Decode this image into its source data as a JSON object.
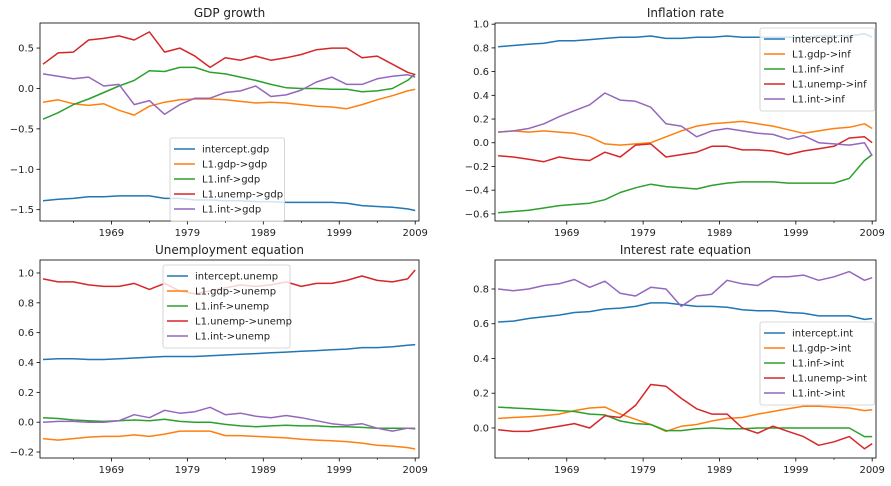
{
  "chart_data": [
    {
      "type": "line",
      "title": "GDP growth",
      "xlim": [
        1959.6,
        2009.5
      ],
      "ylim": [
        -1.64,
        0.81
      ],
      "xticks": [
        1969,
        1979,
        1989,
        1999,
        2009
      ],
      "yticks": [
        0.5,
        0.0,
        -0.5,
        -1.0,
        -1.5
      ],
      "ytick_labels": [
        "0.5",
        "0.0",
        "−0.5",
        "−1.0",
        "−1.5"
      ],
      "grid": false,
      "legend": "lower-center",
      "x": [
        1960,
        1962,
        1964,
        1966,
        1968,
        1970,
        1972,
        1974,
        1976,
        1978,
        1980,
        1982,
        1984,
        1986,
        1988,
        1990,
        1992,
        1994,
        1996,
        1998,
        2000,
        2002,
        2004,
        2006,
        2008,
        2009
      ],
      "series": [
        {
          "name": "intercept.gdp",
          "color": "#1f77b4",
          "values": [
            -1.39,
            -1.37,
            -1.36,
            -1.34,
            -1.34,
            -1.33,
            -1.33,
            -1.33,
            -1.36,
            -1.36,
            -1.38,
            -1.38,
            -1.39,
            -1.39,
            -1.4,
            -1.4,
            -1.41,
            -1.41,
            -1.41,
            -1.41,
            -1.42,
            -1.45,
            -1.46,
            -1.47,
            -1.49,
            -1.51
          ]
        },
        {
          "name": "L1.gdp->gdp",
          "color": "#ff7f0e",
          "values": [
            -0.17,
            -0.14,
            -0.19,
            -0.21,
            -0.19,
            -0.27,
            -0.33,
            -0.22,
            -0.17,
            -0.14,
            -0.13,
            -0.13,
            -0.14,
            -0.16,
            -0.18,
            -0.17,
            -0.18,
            -0.2,
            -0.22,
            -0.23,
            -0.25,
            -0.2,
            -0.14,
            -0.09,
            -0.03,
            -0.01
          ]
        },
        {
          "name": "L1.inf->gdp",
          "color": "#2ca02c",
          "values": [
            -0.38,
            -0.3,
            -0.2,
            -0.13,
            -0.05,
            0.03,
            0.1,
            0.22,
            0.21,
            0.26,
            0.26,
            0.2,
            0.18,
            0.14,
            0.1,
            0.05,
            0.01,
            0.0,
            0.0,
            -0.01,
            -0.01,
            -0.04,
            -0.03,
            0.0,
            0.1,
            0.18
          ]
        },
        {
          "name": "L1.unemp->gdp",
          "color": "#d62728",
          "values": [
            0.3,
            0.44,
            0.45,
            0.6,
            0.62,
            0.65,
            0.6,
            0.7,
            0.45,
            0.5,
            0.4,
            0.26,
            0.38,
            0.35,
            0.4,
            0.35,
            0.38,
            0.42,
            0.48,
            0.5,
            0.5,
            0.38,
            0.4,
            0.3,
            0.2,
            0.17
          ]
        },
        {
          "name": "L1.int->gdp",
          "color": "#9467bd",
          "values": [
            0.18,
            0.15,
            0.12,
            0.14,
            0.03,
            0.05,
            -0.2,
            -0.15,
            -0.32,
            -0.2,
            -0.12,
            -0.12,
            -0.05,
            -0.03,
            0.03,
            -0.1,
            -0.08,
            -0.02,
            0.08,
            0.14,
            0.05,
            0.05,
            0.12,
            0.15,
            0.17,
            0.14
          ]
        }
      ]
    },
    {
      "type": "line",
      "title": "Inflation rate",
      "xlim": [
        1959.6,
        2009.5
      ],
      "ylim": [
        -0.66,
        1.01
      ],
      "xticks": [
        1969,
        1979,
        1989,
        1999,
        2009
      ],
      "yticks": [
        1.0,
        0.8,
        0.6,
        0.4,
        0.2,
        0.0,
        -0.2,
        -0.4,
        -0.6
      ],
      "ytick_labels": [
        "1.0",
        "0.8",
        "0.6",
        "0.4",
        "0.2",
        "0.0",
        "−0.2",
        "−0.4",
        "−0.6"
      ],
      "grid": false,
      "legend": "upper-right",
      "x": [
        1960,
        1962,
        1964,
        1966,
        1968,
        1970,
        1972,
        1974,
        1976,
        1978,
        1980,
        1982,
        1984,
        1986,
        1988,
        1990,
        1992,
        1994,
        1996,
        1998,
        2000,
        2002,
        2004,
        2006,
        2008,
        2009
      ],
      "series": [
        {
          "name": "intercept.inf",
          "color": "#1f77b4",
          "values": [
            0.81,
            0.82,
            0.83,
            0.84,
            0.86,
            0.86,
            0.87,
            0.88,
            0.89,
            0.89,
            0.9,
            0.88,
            0.88,
            0.89,
            0.89,
            0.9,
            0.89,
            0.89,
            0.89,
            0.89,
            0.89,
            0.9,
            0.9,
            0.9,
            0.92,
            0.89
          ]
        },
        {
          "name": "L1.gdp->inf",
          "color": "#ff7f0e",
          "values": [
            0.09,
            0.1,
            0.09,
            0.1,
            0.09,
            0.08,
            0.05,
            -0.01,
            -0.02,
            -0.01,
            0.0,
            0.05,
            0.1,
            0.14,
            0.16,
            0.17,
            0.18,
            0.16,
            0.14,
            0.11,
            0.08,
            0.1,
            0.12,
            0.13,
            0.16,
            0.12
          ]
        },
        {
          "name": "L1.inf->inf",
          "color": "#2ca02c",
          "values": [
            -0.59,
            -0.58,
            -0.57,
            -0.55,
            -0.53,
            -0.52,
            -0.51,
            -0.48,
            -0.42,
            -0.38,
            -0.35,
            -0.37,
            -0.38,
            -0.39,
            -0.36,
            -0.34,
            -0.33,
            -0.33,
            -0.33,
            -0.34,
            -0.34,
            -0.34,
            -0.34,
            -0.3,
            -0.15,
            -0.1
          ]
        },
        {
          "name": "L1.unemp->inf",
          "color": "#d62728",
          "values": [
            -0.11,
            -0.12,
            -0.14,
            -0.16,
            -0.12,
            -0.14,
            -0.15,
            -0.08,
            -0.12,
            -0.02,
            -0.01,
            -0.12,
            -0.1,
            -0.08,
            -0.03,
            -0.03,
            -0.06,
            -0.06,
            -0.07,
            -0.1,
            -0.07,
            -0.05,
            -0.03,
            0.04,
            0.05,
            0.0
          ]
        },
        {
          "name": "L1.int->inf",
          "color": "#9467bd",
          "values": [
            0.09,
            0.1,
            0.12,
            0.16,
            0.22,
            0.27,
            0.32,
            0.42,
            0.36,
            0.35,
            0.3,
            0.16,
            0.14,
            0.05,
            0.1,
            0.12,
            0.1,
            0.08,
            0.07,
            0.03,
            0.06,
            0.0,
            -0.01,
            -0.02,
            0.0,
            -0.11
          ]
        }
      ]
    },
    {
      "type": "line",
      "title": "Unemployment equation",
      "xlim": [
        1959.6,
        2009.5
      ],
      "ylim": [
        -0.24,
        1.087
      ],
      "xticks": [
        1969,
        1979,
        1989,
        1999,
        2009
      ],
      "yticks": [
        1.0,
        0.8,
        0.6,
        0.4,
        0.2,
        0.0,
        -0.2
      ],
      "ytick_labels": [
        "1.0",
        "0.8",
        "0.6",
        "0.4",
        "0.2",
        "0.0",
        "−0.2"
      ],
      "grid": false,
      "legend": "upper-center",
      "x": [
        1960,
        1962,
        1964,
        1966,
        1968,
        1970,
        1972,
        1974,
        1976,
        1978,
        1980,
        1982,
        1984,
        1986,
        1988,
        1990,
        1992,
        1994,
        1996,
        1998,
        2000,
        2002,
        2004,
        2006,
        2008,
        2009
      ],
      "series": [
        {
          "name": "intercept.unemp",
          "color": "#1f77b4",
          "values": [
            0.42,
            0.425,
            0.425,
            0.42,
            0.42,
            0.425,
            0.43,
            0.435,
            0.44,
            0.44,
            0.44,
            0.445,
            0.45,
            0.455,
            0.46,
            0.465,
            0.47,
            0.475,
            0.48,
            0.485,
            0.49,
            0.5,
            0.5,
            0.505,
            0.515,
            0.52
          ]
        },
        {
          "name": "L1.gdp->unemp",
          "color": "#ff7f0e",
          "values": [
            -0.11,
            -0.12,
            -0.11,
            -0.1,
            -0.095,
            -0.095,
            -0.085,
            -0.095,
            -0.08,
            -0.06,
            -0.06,
            -0.06,
            -0.09,
            -0.09,
            -0.095,
            -0.1,
            -0.105,
            -0.115,
            -0.12,
            -0.125,
            -0.13,
            -0.14,
            -0.155,
            -0.16,
            -0.17,
            -0.18
          ]
        },
        {
          "name": "L1.inf->unemp",
          "color": "#2ca02c",
          "values": [
            0.03,
            0.025,
            0.015,
            0.01,
            0.005,
            0.01,
            0.015,
            0.01,
            0.02,
            0.005,
            0.0,
            0.0,
            -0.015,
            -0.025,
            -0.03,
            -0.025,
            -0.02,
            -0.025,
            -0.025,
            -0.03,
            -0.03,
            -0.035,
            -0.04,
            -0.04,
            -0.04,
            -0.045
          ]
        },
        {
          "name": "L1.unemp->unemp",
          "color": "#d62728",
          "values": [
            0.96,
            0.94,
            0.94,
            0.92,
            0.91,
            0.91,
            0.93,
            0.89,
            0.93,
            0.88,
            0.86,
            0.88,
            0.9,
            0.92,
            0.91,
            0.92,
            0.94,
            0.91,
            0.93,
            0.93,
            0.95,
            0.98,
            0.95,
            0.94,
            0.96,
            1.02
          ]
        },
        {
          "name": "L1.int->unemp",
          "color": "#9467bd",
          "values": [
            0.0,
            0.005,
            0.005,
            0.0,
            0.0,
            0.01,
            0.05,
            0.03,
            0.08,
            0.06,
            0.07,
            0.1,
            0.05,
            0.06,
            0.04,
            0.03,
            0.045,
            0.03,
            0.01,
            -0.01,
            -0.02,
            -0.01,
            -0.04,
            -0.06,
            -0.04,
            -0.04
          ]
        }
      ]
    },
    {
      "type": "line",
      "title": "Interest rate equation",
      "xlim": [
        1959.6,
        2009.5
      ],
      "ylim": [
        -0.173,
        0.967
      ],
      "xticks": [
        1969,
        1979,
        1989,
        1999,
        2009
      ],
      "yticks": [
        0.8,
        0.6,
        0.4,
        0.2,
        0.0
      ],
      "ytick_labels": [
        "0.8",
        "0.6",
        "0.4",
        "0.2",
        "0.0"
      ],
      "grid": false,
      "legend": "center-right",
      "x": [
        1960,
        1962,
        1964,
        1966,
        1968,
        1970,
        1972,
        1974,
        1976,
        1978,
        1980,
        1982,
        1984,
        1986,
        1988,
        1990,
        1992,
        1994,
        1996,
        1998,
        2000,
        2002,
        2004,
        2006,
        2008,
        2009
      ],
      "series": [
        {
          "name": "intercept.int",
          "color": "#1f77b4",
          "values": [
            0.61,
            0.615,
            0.63,
            0.64,
            0.65,
            0.665,
            0.67,
            0.685,
            0.69,
            0.7,
            0.72,
            0.72,
            0.71,
            0.7,
            0.7,
            0.695,
            0.68,
            0.675,
            0.675,
            0.665,
            0.66,
            0.645,
            0.645,
            0.645,
            0.625,
            0.63
          ]
        },
        {
          "name": "L1.gdp->int",
          "color": "#ff7f0e",
          "values": [
            0.055,
            0.06,
            0.065,
            0.07,
            0.08,
            0.1,
            0.115,
            0.12,
            0.08,
            0.05,
            0.02,
            -0.02,
            0.01,
            0.02,
            0.04,
            0.055,
            0.06,
            0.08,
            0.095,
            0.11,
            0.125,
            0.125,
            0.12,
            0.115,
            0.1,
            0.105
          ]
        },
        {
          "name": "L1.inf->int",
          "color": "#2ca02c",
          "values": [
            0.12,
            0.115,
            0.11,
            0.105,
            0.1,
            0.095,
            0.08,
            0.075,
            0.04,
            0.025,
            0.02,
            -0.015,
            -0.015,
            -0.005,
            0.0,
            -0.005,
            -0.005,
            0.0,
            0.0,
            0.0,
            0.0,
            0.0,
            0.0,
            0.0,
            -0.05,
            -0.05
          ]
        },
        {
          "name": "L1.unemp->int",
          "color": "#d62728",
          "values": [
            -0.01,
            -0.02,
            -0.02,
            -0.005,
            0.01,
            0.025,
            0.0,
            0.07,
            0.06,
            0.13,
            0.25,
            0.24,
            0.17,
            0.11,
            0.08,
            0.08,
            0.0,
            -0.03,
            0.01,
            -0.02,
            -0.05,
            -0.1,
            -0.08,
            -0.05,
            -0.12,
            -0.09
          ]
        },
        {
          "name": "L1.int->int",
          "color": "#9467bd",
          "values": [
            0.8,
            0.79,
            0.8,
            0.82,
            0.83,
            0.855,
            0.81,
            0.845,
            0.775,
            0.76,
            0.81,
            0.8,
            0.7,
            0.76,
            0.77,
            0.85,
            0.83,
            0.82,
            0.87,
            0.87,
            0.88,
            0.85,
            0.87,
            0.9,
            0.85,
            0.865
          ]
        }
      ]
    }
  ]
}
